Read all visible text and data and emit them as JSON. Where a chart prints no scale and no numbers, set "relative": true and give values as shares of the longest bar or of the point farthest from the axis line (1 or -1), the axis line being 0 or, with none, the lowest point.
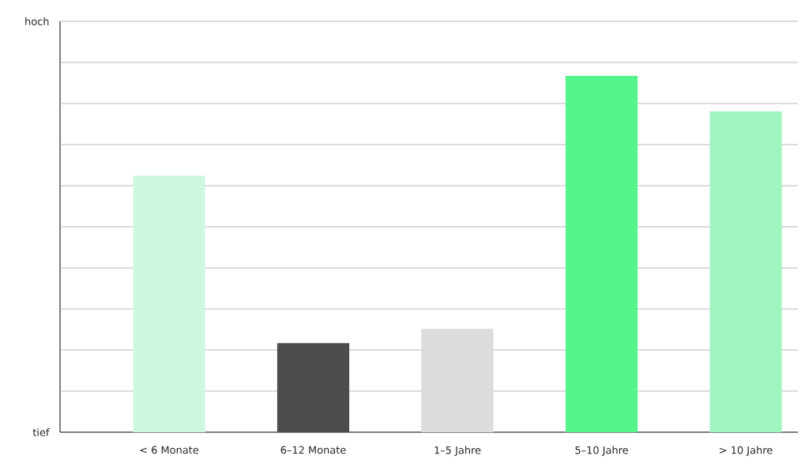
{
  "chart_data": {
    "type": "bar",
    "relative": true,
    "categories": [
      "< 6 Monate",
      "6–12 Monate",
      "1–5 Jahre",
      "5–10 Jahre",
      "> 10 Jahre"
    ],
    "values": [
      0.72,
      0.25,
      0.29,
      1,
      0.9
    ],
    "colors": [
      "#ccf8df",
      "#4b4c4e",
      "#dcdddf",
      "#55f58d",
      "#a0f6c0"
    ],
    "annotations": [
      "hoch",
      "tief"
    ],
    "grid": "y"
  }
}
